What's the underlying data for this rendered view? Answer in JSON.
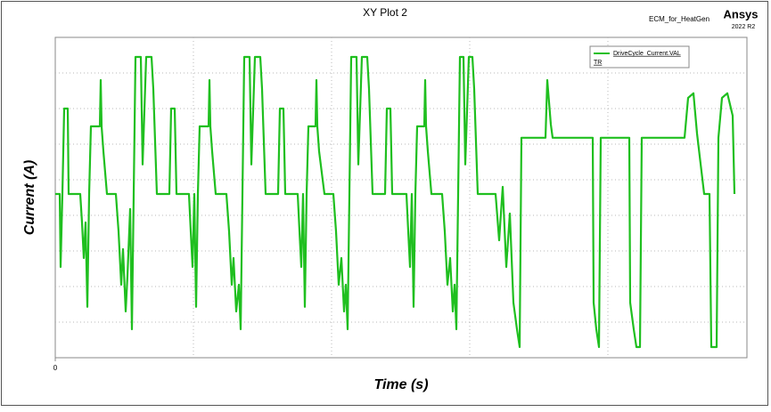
{
  "chart_data": {
    "type": "line",
    "title": "XY Plot 2",
    "project": "ECM_for_HeatGen",
    "brand": "Ansys",
    "version": "2022 R2",
    "x_label": "Time (s)",
    "y_label": "Current (A)",
    "legend_note": "TR",
    "xlim": [
      0,
      776
    ],
    "ylim": [
      0,
      9
    ],
    "xticks": [
      0
    ],
    "x": [
      0,
      5,
      6,
      8,
      10,
      14,
      15,
      28,
      30,
      32,
      34,
      36,
      38,
      40,
      50,
      51,
      52,
      54,
      58,
      68,
      71,
      74,
      76,
      79,
      81,
      84,
      86,
      88,
      90,
      96,
      98,
      102,
      108,
      110,
      114,
      128,
      130,
      134,
      136,
      150,
      152,
      154,
      156,
      158,
      160,
      162,
      172,
      173,
      174,
      176,
      180,
      192,
      195,
      198,
      200,
      203,
      206,
      208,
      210,
      212,
      218,
      220,
      224,
      230,
      232,
      236,
      250,
      252,
      256,
      258,
      272,
      274,
      276,
      278,
      280,
      282,
      284,
      292,
      293,
      294,
      296,
      302,
      312,
      315,
      318,
      321,
      324,
      326,
      328,
      330,
      332,
      338,
      340,
      344,
      350,
      352,
      356,
      370,
      372,
      376,
      378,
      394,
      396,
      398,
      400,
      402,
      404,
      406,
      414,
      415,
      416,
      418,
      422,
      434,
      437,
      440,
      443,
      446,
      448,
      450,
      452,
      454,
      458,
      460,
      464,
      468,
      470,
      474,
      494,
      498,
      502,
      506,
      510,
      514,
      518,
      521,
      523,
      550,
      552,
      556,
      558,
      603,
      604,
      607,
      610,
      612,
      644,
      645,
      649,
      652,
      656,
      658,
      706,
      710,
      716,
      720,
      728,
      734,
      736,
      742,
      744,
      748,
      754,
      760,
      762
    ],
    "series": [
      {
        "name": "DriveCycle_Current.VAL",
        "color": "#1fbf1f",
        "values": [
          4.6,
          4.6,
          2.55,
          4.6,
          7,
          7,
          4.6,
          4.6,
          3.8,
          2.8,
          3.8,
          1.43,
          4.6,
          6.5,
          6.5,
          7.8,
          6.5,
          5.8,
          4.6,
          4.6,
          3.55,
          2.05,
          3.05,
          1.3,
          2.3,
          4.18,
          0.8,
          4.6,
          8.45,
          8.45,
          5.43,
          8.45,
          8.45,
          7.55,
          4.6,
          4.6,
          7,
          7,
          4.6,
          4.6,
          3.55,
          2.55,
          4.6,
          1.43,
          4.6,
          6.5,
          6.5,
          7.8,
          6.5,
          5.8,
          4.6,
          4.6,
          3.55,
          2.05,
          2.8,
          1.3,
          2.05,
          0.8,
          4.6,
          8.45,
          8.45,
          5.43,
          8.45,
          8.45,
          7.55,
          4.6,
          4.6,
          7,
          7,
          4.6,
          4.6,
          3.55,
          2.55,
          4.6,
          1.43,
          4.6,
          6.5,
          6.5,
          7.8,
          6.5,
          5.8,
          4.6,
          4.6,
          3.55,
          2.05,
          2.8,
          1.3,
          2.05,
          0.8,
          4.6,
          8.45,
          8.45,
          5.43,
          8.45,
          8.45,
          7.55,
          4.6,
          4.6,
          7,
          7,
          4.6,
          4.6,
          3.55,
          2.55,
          4.6,
          1.43,
          4.6,
          6.5,
          6.5,
          7.8,
          6.5,
          5.8,
          4.6,
          4.6,
          3.55,
          2.05,
          2.8,
          1.3,
          2.05,
          0.8,
          4.6,
          8.45,
          8.45,
          5.43,
          8.45,
          8.45,
          7.55,
          4.6,
          4.6,
          3.3,
          4.8,
          2.55,
          4.05,
          1.55,
          0.8,
          0.3,
          6.18,
          6.18,
          7.8,
          6.55,
          6.18,
          6.18,
          1.55,
          0.8,
          0.3,
          6.18,
          6.18,
          1.55,
          0.8,
          0.3,
          0.3,
          6.18,
          6.18,
          7.3,
          7.43,
          6.3,
          4.6,
          4.6,
          0.3,
          0.3,
          6.18,
          7.3,
          7.43,
          6.8,
          4.6
        ]
      }
    ]
  }
}
